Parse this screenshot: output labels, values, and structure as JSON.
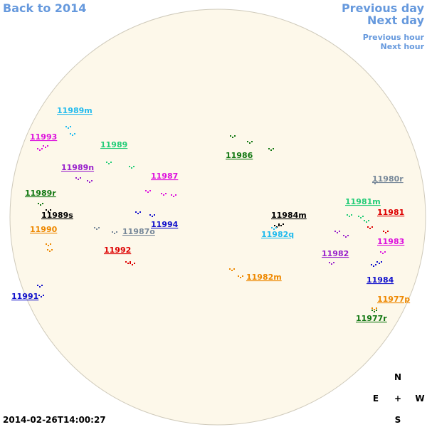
{
  "nav": {
    "back": "Back to 2014",
    "previous_day": "Previous day",
    "next_day": "Next day",
    "previous_hour": "Previous hour",
    "next_hour": "Next hour"
  },
  "compass": {
    "north": "N",
    "east": "E",
    "center": "+",
    "west": "W",
    "south": "S"
  },
  "timestamp": "2014-02-26T14:00:27",
  "regions": [
    {
      "label": "11989m",
      "color": "#22bbee"
    },
    {
      "label": "11993",
      "color": "#dd11dd"
    },
    {
      "label": "11989",
      "color": "#22cc77"
    },
    {
      "label": "11989n",
      "color": "#9922cc"
    },
    {
      "label": "11987",
      "color": "#dd11dd"
    },
    {
      "label": "11989r",
      "color": "#117711"
    },
    {
      "label": "11989s",
      "color": "#000000"
    },
    {
      "label": "11990",
      "color": "#ee8800"
    },
    {
      "label": "11987o",
      "color": "#778899"
    },
    {
      "label": "11994",
      "color": "#1111cc"
    },
    {
      "label": "11992",
      "color": "#dd0000"
    },
    {
      "label": "11991",
      "color": "#1111cc"
    },
    {
      "label": "11986",
      "color": "#117711"
    },
    {
      "label": "11984m",
      "color": "#000000"
    },
    {
      "label": "11982q",
      "color": "#22bbee"
    },
    {
      "label": "11982m",
      "color": "#ee8800"
    },
    {
      "label": "11980r",
      "color": "#778899"
    },
    {
      "label": "11981m",
      "color": "#22cc77"
    },
    {
      "label": "11981",
      "color": "#dd0000"
    },
    {
      "label": "11983",
      "color": "#dd11dd"
    },
    {
      "label": "11982",
      "color": "#9922cc"
    },
    {
      "label": "11984",
      "color": "#1111cc"
    },
    {
      "label": "11977p",
      "color": "#ee8800"
    },
    {
      "label": "11977r",
      "color": "#117711"
    }
  ]
}
